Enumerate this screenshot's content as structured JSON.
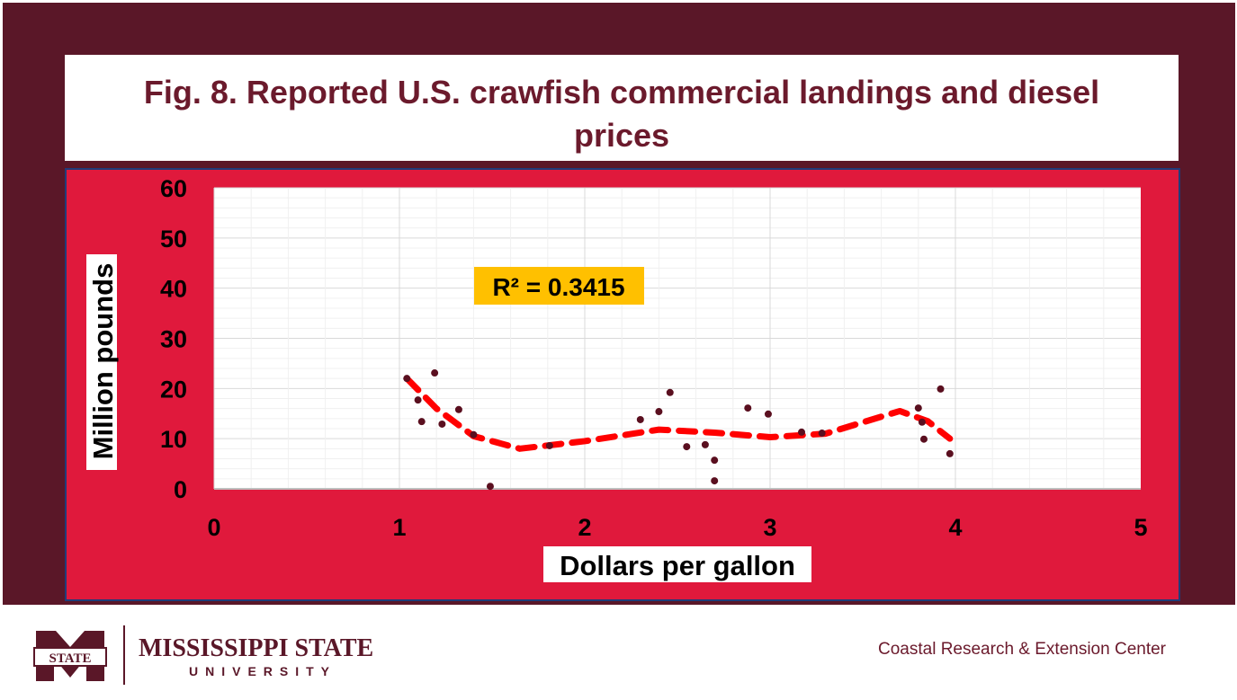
{
  "chart_data": {
    "type": "scatter",
    "title": "Fig. 8. Reported U.S. crawfish commercial landings and diesel prices",
    "xlabel": "Dollars per gallon",
    "ylabel": "Million pounds",
    "xlim": [
      0,
      5
    ],
    "ylim": [
      0,
      60
    ],
    "xticks": [
      "0",
      "1",
      "2",
      "3",
      "4",
      "5"
    ],
    "yticks": [
      "0",
      "10",
      "20",
      "30",
      "40",
      "50",
      "60"
    ],
    "grid": true,
    "annotation": "R² = 0.3415",
    "points": [
      [
        1.04,
        22.0
      ],
      [
        1.1,
        17.7
      ],
      [
        1.12,
        13.4
      ],
      [
        1.19,
        23.1
      ],
      [
        1.23,
        12.9
      ],
      [
        1.32,
        15.8
      ],
      [
        1.4,
        10.8
      ],
      [
        1.49,
        0.5
      ],
      [
        1.81,
        8.6
      ],
      [
        2.3,
        13.8
      ],
      [
        2.4,
        15.4
      ],
      [
        2.46,
        19.2
      ],
      [
        2.55,
        8.4
      ],
      [
        2.65,
        8.8
      ],
      [
        2.7,
        5.7
      ],
      [
        2.7,
        1.6
      ],
      [
        2.88,
        16.1
      ],
      [
        2.99,
        14.9
      ],
      [
        3.17,
        11.3
      ],
      [
        3.28,
        11.1
      ],
      [
        3.8,
        16.1
      ],
      [
        3.82,
        13.3
      ],
      [
        3.83,
        9.9
      ],
      [
        3.92,
        19.9
      ],
      [
        3.97,
        7.0
      ]
    ],
    "trendline": [
      [
        1.04,
        22
      ],
      [
        1.2,
        16
      ],
      [
        1.4,
        10.5
      ],
      [
        1.65,
        8
      ],
      [
        2.0,
        9.5
      ],
      [
        2.4,
        11.8
      ],
      [
        2.7,
        11.2
      ],
      [
        3.0,
        10.3
      ],
      [
        3.3,
        11
      ],
      [
        3.7,
        15.5
      ],
      [
        3.85,
        13.5
      ],
      [
        3.97,
        10
      ]
    ],
    "colors": {
      "points": "#5a0f1f",
      "trend": "#ff0000",
      "annotation_bg": "#ffc000"
    }
  },
  "footer": {
    "logo_text": "MISSISSIPPI STATE",
    "logo_sub": "UNIVERSITY",
    "logo_mark": "STATE",
    "center": "Coastal Research & Extension Center"
  }
}
